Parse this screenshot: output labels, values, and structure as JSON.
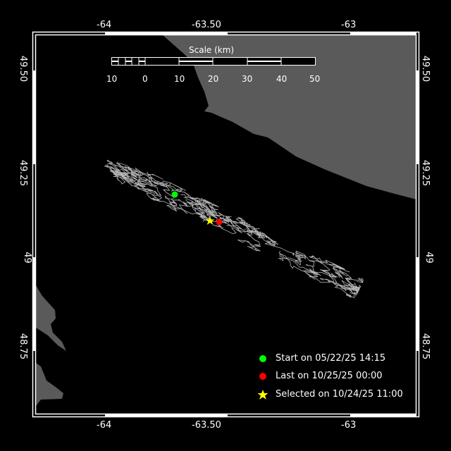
{
  "map": {
    "x_ticks": [
      "-64",
      "-63.50",
      "-63"
    ],
    "y_ticks": [
      "49.50",
      "49.25",
      "49",
      "48.75"
    ],
    "scale_bar": {
      "title": "Scale (km)",
      "labels": [
        "10",
        "0",
        "10",
        "20",
        "30",
        "40",
        "50"
      ]
    },
    "colors": {
      "land": "#5a5a5a",
      "water": "#000000",
      "track": "#b4b4b4",
      "start": "#00ff00",
      "last": "#ff0000",
      "selected": "#ffff00"
    },
    "legend": [
      {
        "icon": "green-dot-icon",
        "label": "Start on 05/22/25 14:15"
      },
      {
        "icon": "red-dot-icon",
        "label": "Last on 10/25/25 00:00"
      },
      {
        "icon": "yellow-star-icon",
        "label": "Selected on 10/24/25 11:00"
      }
    ]
  }
}
